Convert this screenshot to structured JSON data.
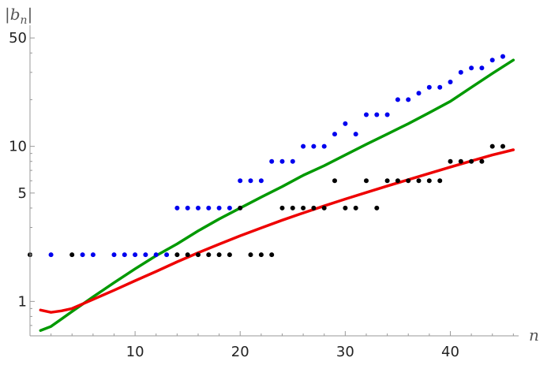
{
  "chart_data": {
    "type": "scatter",
    "xlabel": "n",
    "ylabel": "|b_n|",
    "ylabel_base": "|b",
    "ylabel_sub": "n",
    "ylabel_end": "|",
    "y_scale": "log",
    "xlim": [
      0,
      46.5
    ],
    "ylim": [
      0.6,
      55
    ],
    "grid": false,
    "x_ticks": [
      {
        "value": 10,
        "label": "10"
      },
      {
        "value": 20,
        "label": "20"
      },
      {
        "value": 30,
        "label": "30"
      },
      {
        "value": 40,
        "label": "40"
      }
    ],
    "y_ticks": [
      {
        "value": 1,
        "label": "1"
      },
      {
        "value": 5,
        "label": "5"
      },
      {
        "value": 10,
        "label": "10"
      },
      {
        "value": 50,
        "label": "50"
      }
    ],
    "y_minor_ticks": [
      0.7,
      0.8,
      0.9,
      2,
      3,
      4,
      6,
      7,
      8,
      9,
      20,
      30,
      40
    ],
    "series": [
      {
        "kind": "points",
        "color": "#000000",
        "points": [
          [
            0,
            2
          ],
          [
            4,
            2
          ],
          [
            14,
            2
          ],
          [
            15,
            2
          ],
          [
            16,
            2
          ],
          [
            17,
            2
          ],
          [
            18,
            2
          ],
          [
            19,
            2
          ],
          [
            20,
            4
          ],
          [
            21,
            2
          ],
          [
            22,
            2
          ],
          [
            23,
            2
          ],
          [
            24,
            4
          ],
          [
            25,
            4
          ],
          [
            26,
            4
          ],
          [
            27,
            4
          ],
          [
            28,
            4
          ],
          [
            29,
            6
          ],
          [
            30,
            4
          ],
          [
            31,
            4
          ],
          [
            32,
            6
          ],
          [
            33,
            4
          ],
          [
            34,
            6
          ],
          [
            35,
            6
          ],
          [
            36,
            6
          ],
          [
            37,
            6
          ],
          [
            38,
            6
          ],
          [
            39,
            6
          ],
          [
            40,
            8
          ],
          [
            41,
            8
          ],
          [
            42,
            8
          ],
          [
            43,
            8
          ],
          [
            44,
            10
          ],
          [
            45,
            10
          ]
        ]
      },
      {
        "kind": "points",
        "color": "#0000ee",
        "points": [
          [
            2,
            2
          ],
          [
            5,
            2
          ],
          [
            6,
            2
          ],
          [
            8,
            2
          ],
          [
            9,
            2
          ],
          [
            10,
            2
          ],
          [
            11,
            2
          ],
          [
            12,
            2
          ],
          [
            13,
            2
          ],
          [
            14,
            4
          ],
          [
            15,
            4
          ],
          [
            16,
            4
          ],
          [
            17,
            4
          ],
          [
            18,
            4
          ],
          [
            19,
            4
          ],
          [
            20,
            6
          ],
          [
            21,
            6
          ],
          [
            22,
            6
          ],
          [
            23,
            8
          ],
          [
            24,
            8
          ],
          [
            25,
            8
          ],
          [
            26,
            10
          ],
          [
            27,
            10
          ],
          [
            28,
            10
          ],
          [
            29,
            12
          ],
          [
            30,
            14
          ],
          [
            31,
            12
          ],
          [
            32,
            16
          ],
          [
            33,
            16
          ],
          [
            34,
            16
          ],
          [
            35,
            20
          ],
          [
            36,
            20
          ],
          [
            37,
            22
          ],
          [
            38,
            24
          ],
          [
            39,
            24
          ],
          [
            40,
            26
          ],
          [
            41,
            30
          ],
          [
            42,
            32
          ],
          [
            43,
            32
          ],
          [
            44,
            36
          ],
          [
            45,
            38
          ]
        ]
      },
      {
        "kind": "line",
        "color": "#009900",
        "points": [
          [
            1,
            0.65
          ],
          [
            2,
            0.69
          ],
          [
            3,
            0.77
          ],
          [
            4,
            0.86
          ],
          [
            6,
            1.07
          ],
          [
            8,
            1.32
          ],
          [
            10,
            1.62
          ],
          [
            12,
            1.97
          ],
          [
            14,
            2.35
          ],
          [
            16,
            2.85
          ],
          [
            18,
            3.4
          ],
          [
            20,
            4.0
          ],
          [
            22,
            4.7
          ],
          [
            24,
            5.5
          ],
          [
            26,
            6.5
          ],
          [
            28,
            7.5
          ],
          [
            30,
            8.8
          ],
          [
            32,
            10.3
          ],
          [
            34,
            12.0
          ],
          [
            36,
            14.0
          ],
          [
            38,
            16.5
          ],
          [
            40,
            19.5
          ],
          [
            42,
            24.0
          ],
          [
            44,
            29.5
          ],
          [
            46,
            36.0
          ]
        ]
      },
      {
        "kind": "line",
        "color": "#ee0000",
        "points": [
          [
            1,
            0.88
          ],
          [
            2,
            0.85
          ],
          [
            3,
            0.87
          ],
          [
            4,
            0.9
          ],
          [
            6,
            1.03
          ],
          [
            8,
            1.18
          ],
          [
            10,
            1.36
          ],
          [
            12,
            1.56
          ],
          [
            14,
            1.8
          ],
          [
            16,
            2.06
          ],
          [
            18,
            2.34
          ],
          [
            20,
            2.65
          ],
          [
            22,
            2.98
          ],
          [
            24,
            3.34
          ],
          [
            26,
            3.72
          ],
          [
            28,
            4.13
          ],
          [
            30,
            4.57
          ],
          [
            32,
            5.04
          ],
          [
            34,
            5.55
          ],
          [
            36,
            6.1
          ],
          [
            38,
            6.7
          ],
          [
            40,
            7.35
          ],
          [
            42,
            8.05
          ],
          [
            44,
            8.8
          ],
          [
            46,
            9.5
          ]
        ]
      }
    ]
  }
}
